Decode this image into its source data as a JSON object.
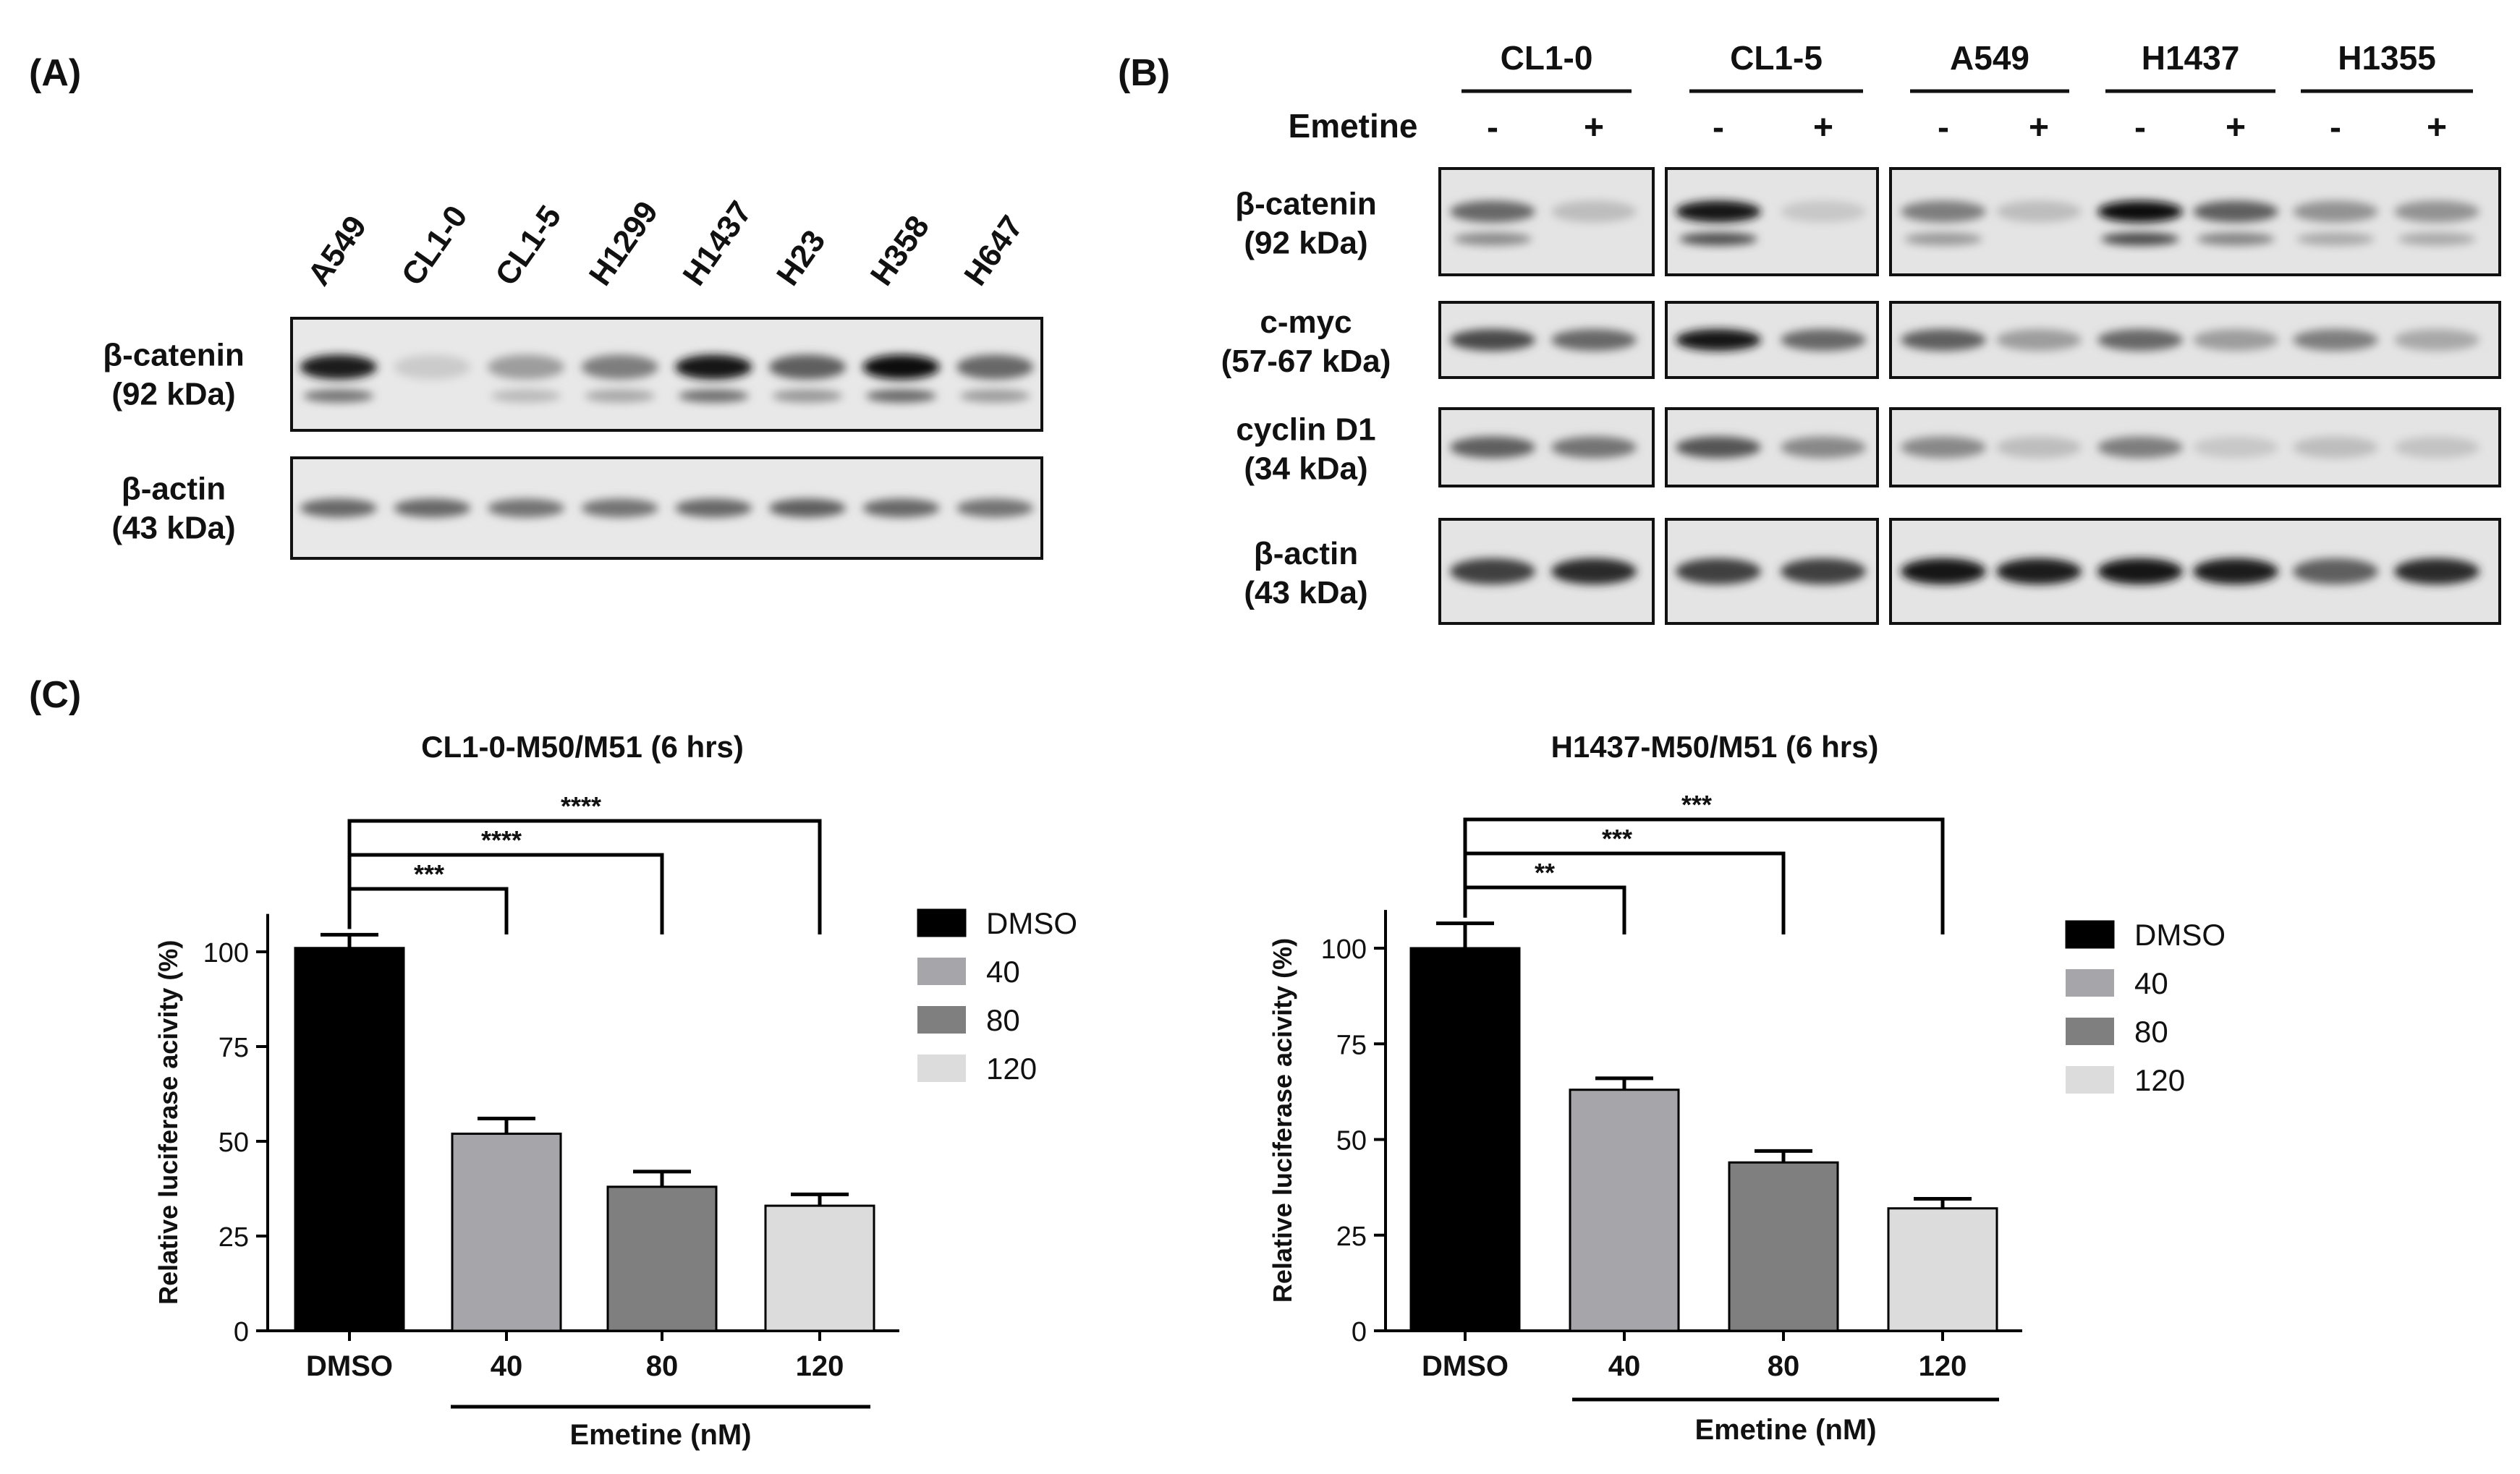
{
  "panel_labels": {
    "a": "(A)",
    "b": "(B)",
    "c": "(C)"
  },
  "blot_a": {
    "lanes": [
      "A549",
      "CL1-0",
      "CL1-5",
      "H1299",
      "H1437",
      "H23",
      "H358",
      "H647"
    ],
    "rows": [
      {
        "name": "β-catenin",
        "size": "(92 kDa)",
        "intensities": [
          0.9,
          0.08,
          0.3,
          0.45,
          0.95,
          0.6,
          1.0,
          0.55
        ]
      },
      {
        "name": "β-actin",
        "size": "(43 kDa)",
        "intensities": [
          0.55,
          0.55,
          0.5,
          0.5,
          0.55,
          0.6,
          0.55,
          0.5
        ]
      }
    ]
  },
  "blot_b": {
    "groups": [
      "CL1-0",
      "CL1-5",
      "A549",
      "H1437",
      "H1355"
    ],
    "treatment_label": "Emetine",
    "signs": [
      "-",
      "+"
    ],
    "rows": [
      {
        "name": "β-catenin",
        "size": "(92 kDa)",
        "intensities": [
          0.55,
          0.15,
          0.95,
          0.1,
          0.45,
          0.15,
          1.0,
          0.6,
          0.35,
          0.35
        ]
      },
      {
        "name": "c-myc",
        "size": "(57-67 kDa)",
        "intensities": [
          0.7,
          0.55,
          0.95,
          0.55,
          0.6,
          0.3,
          0.55,
          0.3,
          0.45,
          0.25
        ]
      },
      {
        "name": "cyclin D1",
        "size": "(34 kDa)",
        "intensities": [
          0.6,
          0.5,
          0.65,
          0.4,
          0.4,
          0.15,
          0.45,
          0.1,
          0.15,
          0.12
        ]
      },
      {
        "name": "β-actin",
        "size": "(43 kDa)",
        "intensities": [
          0.75,
          0.85,
          0.75,
          0.75,
          0.95,
          0.9,
          0.95,
          0.9,
          0.6,
          0.85
        ]
      }
    ]
  },
  "chart_data": [
    {
      "type": "bar",
      "title": "CL1-0-M50/M51 (6 hrs)",
      "xlabel": "Emetine (nM)",
      "ylabel": "Relative luciferase acivity (%)",
      "categories": [
        "DMSO",
        "40",
        "80",
        "120"
      ],
      "values": [
        101,
        52,
        38,
        33
      ],
      "errors": [
        3.5,
        4,
        4,
        3
      ],
      "ylim": [
        0,
        110
      ],
      "yticks": [
        0,
        25,
        50,
        75,
        100
      ],
      "colors": [
        "#000000",
        "#a6a6aa",
        "#7f7f7f",
        "#dcdcdc"
      ],
      "legend": {
        "entries": [
          "DMSO",
          "40",
          "80",
          "120"
        ],
        "position": "right"
      },
      "significance": [
        {
          "from": "DMSO",
          "to": "40",
          "label": "***"
        },
        {
          "from": "DMSO",
          "to": "80",
          "label": "****"
        },
        {
          "from": "DMSO",
          "to": "120",
          "label": "****"
        }
      ]
    },
    {
      "type": "bar",
      "title": "H1437-M50/M51 (6 hrs)",
      "xlabel": "Emetine (nM)",
      "ylabel": "Relative luciferase acivity (%)",
      "categories": [
        "DMSO",
        "40",
        "80",
        "120"
      ],
      "values": [
        100,
        63,
        44,
        32
      ],
      "errors": [
        6.5,
        3,
        3,
        2.5
      ],
      "ylim": [
        0,
        110
      ],
      "yticks": [
        0,
        25,
        50,
        75,
        100
      ],
      "colors": [
        "#000000",
        "#a6a6aa",
        "#7f7f7f",
        "#dcdcdc"
      ],
      "legend": {
        "entries": [
          "DMSO",
          "40",
          "80",
          "120"
        ],
        "position": "right"
      },
      "significance": [
        {
          "from": "DMSO",
          "to": "40",
          "label": "**"
        },
        {
          "from": "DMSO",
          "to": "80",
          "label": "***"
        },
        {
          "from": "DMSO",
          "to": "120",
          "label": "***"
        }
      ]
    }
  ]
}
